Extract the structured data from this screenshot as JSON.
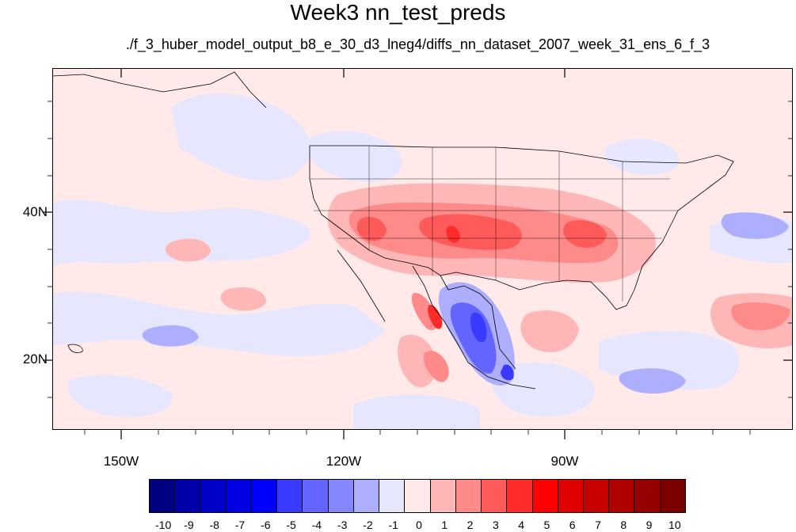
{
  "title": "Week3 nn_test_preds",
  "subtitle": "./f_3_huber_model_output_b8_e_30_d3_lneg4/diffs_nn_dataset_2007_week_31_ens_6_f_3",
  "axes": {
    "lat_labels": [
      "40N",
      "20N"
    ],
    "lon_labels": [
      "150W",
      "120W",
      "90W"
    ]
  },
  "colorbar": {
    "colors": [
      "#000080",
      "#0000a8",
      "#0000c8",
      "#0000e0",
      "#0000ff",
      "#3a3aff",
      "#6464ff",
      "#8686ff",
      "#aeaeff",
      "#e6e6ff",
      "#ffe9e9",
      "#ffb6b6",
      "#ff8a8a",
      "#ff5a5a",
      "#ff2a2a",
      "#ff0000",
      "#e00000",
      "#c80000",
      "#b00000",
      "#960000",
      "#7a0000"
    ],
    "labels": [
      "-10",
      "-9",
      "-8",
      "-7",
      "-6",
      "-5",
      "-4",
      "-3",
      "-2",
      "-1",
      "0",
      "1",
      "2",
      "3",
      "4",
      "5",
      "6",
      "7",
      "8",
      "9",
      "10"
    ]
  },
  "map": {
    "background_color": "#ffe9e9",
    "neg_light": "#e6e6ff",
    "neg_mid": "#aeaeff",
    "neg_strong": "#6464ff",
    "neg_deep": "#3a3aff",
    "pos_light": "#ffb6b6",
    "pos_mid": "#ff8a8a",
    "pos_strong": "#ff5a5a",
    "pos_deep": "#ff2a2a"
  }
}
